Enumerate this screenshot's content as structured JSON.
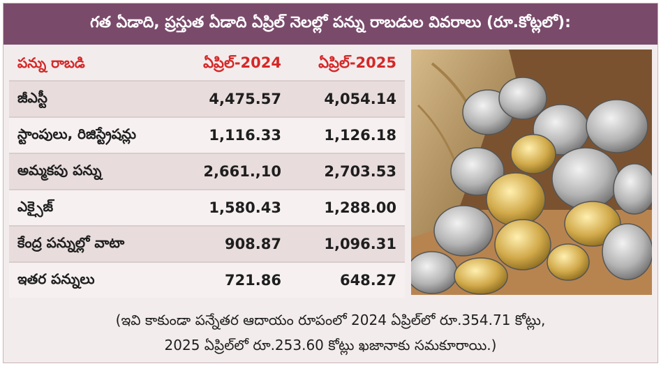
{
  "header": {
    "title": "గత ఏడాది, ప్రస్తుత ఏడాది ఏప్రిల్ నెలల్లో పన్ను రాబడుల వివరాలు (రూ.కోట్లలో):"
  },
  "table": {
    "columns": [
      "పన్ను రాబడి",
      "ఏప్రిల్-2024",
      "ఏప్రిల్-2025"
    ],
    "rows": [
      {
        "label": "జీఎస్టీ",
        "apr2024": "4,475.57",
        "apr2025": "4,054.14"
      },
      {
        "label": "స్టాంపులు, రిజిస్ట్రేషన్లు",
        "apr2024": "1,116.33",
        "apr2025": "1,126.18"
      },
      {
        "label": "అమ్మకపు పన్ను",
        "apr2024": "2,661.,10",
        "apr2025": "2,703.53"
      },
      {
        "label": "ఎక్సైజ్",
        "apr2024": "1,580.43",
        "apr2025": "1,288.00"
      },
      {
        "label": "కేంద్ర పన్నుల్లో వాటా",
        "apr2024": "908.87",
        "apr2025": "1,096.31"
      },
      {
        "label": "ఇతర పన్నులు",
        "apr2024": "721.86",
        "apr2025": "648.27"
      }
    ]
  },
  "photo": {
    "icon": "coins-sack-photo"
  },
  "footnote": {
    "line1": "(ఇవి కాకుండా పన్నేతర ఆదాయం రూపంలో 2024 ఏప్రిల్‌లో రూ.354.71 కోట్లు,",
    "line2": "2025 ఏప్రిల్‌లో రూ.253.60 కోట్లు ఖజానాకు సమకూరాయి.)"
  },
  "colors": {
    "header_bg": "#7a4a6b",
    "column_header_text": "#d42828",
    "row_shaded": "#e8dcdc",
    "row_plain": "#f6f0f0"
  }
}
